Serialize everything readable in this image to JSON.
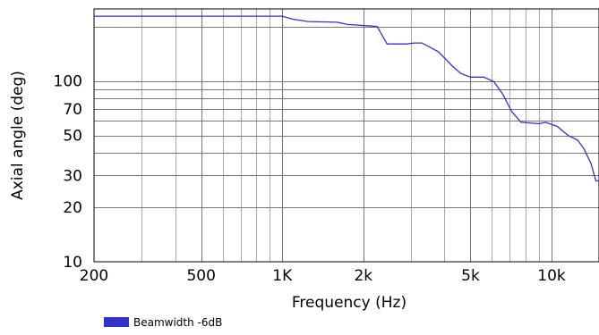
{
  "chart_data": {
    "type": "line",
    "xlabel": "Frequency (Hz)",
    "ylabel": "Axial angle (deg)",
    "x_scale": "log",
    "y_scale": "log",
    "xlim": [
      200,
      15000
    ],
    "ylim": [
      10,
      250
    ],
    "grid": true,
    "legend_position": "bottom-left",
    "x_tick_labels": [
      {
        "value": 200,
        "label": "200"
      },
      {
        "value": 500,
        "label": "500"
      },
      {
        "value": 1000,
        "label": "1K"
      },
      {
        "value": 2000,
        "label": "2k"
      },
      {
        "value": 5000,
        "label": "5k"
      },
      {
        "value": 10000,
        "label": "10k"
      }
    ],
    "y_tick_labels": [
      {
        "value": 10,
        "label": "10"
      },
      {
        "value": 20,
        "label": "20"
      },
      {
        "value": 30,
        "label": "30"
      },
      {
        "value": 50,
        "label": "50"
      },
      {
        "value": 70,
        "label": "70"
      },
      {
        "value": 100,
        "label": "100"
      }
    ],
    "series": [
      {
        "name": "Beamwidth -6dB",
        "color": "#3333cc",
        "points": [
          [
            200,
            228
          ],
          [
            1000,
            228
          ],
          [
            1100,
            219
          ],
          [
            1250,
            213
          ],
          [
            1600,
            211
          ],
          [
            1750,
            205
          ],
          [
            2150,
            201
          ],
          [
            2250,
            200
          ],
          [
            2450,
            160
          ],
          [
            2900,
            160
          ],
          [
            3100,
            162
          ],
          [
            3300,
            162
          ],
          [
            3800,
            145
          ],
          [
            4300,
            120
          ],
          [
            4600,
            110
          ],
          [
            5000,
            105
          ],
          [
            5600,
            105
          ],
          [
            6100,
            99
          ],
          [
            6600,
            84
          ],
          [
            7100,
            68
          ],
          [
            7700,
            59
          ],
          [
            9000,
            58
          ],
          [
            9500,
            59
          ],
          [
            10500,
            56
          ],
          [
            11500,
            50
          ],
          [
            12500,
            47
          ],
          [
            13200,
            42
          ],
          [
            14000,
            35
          ],
          [
            14600,
            28
          ],
          [
            15000,
            28
          ]
        ]
      }
    ]
  }
}
